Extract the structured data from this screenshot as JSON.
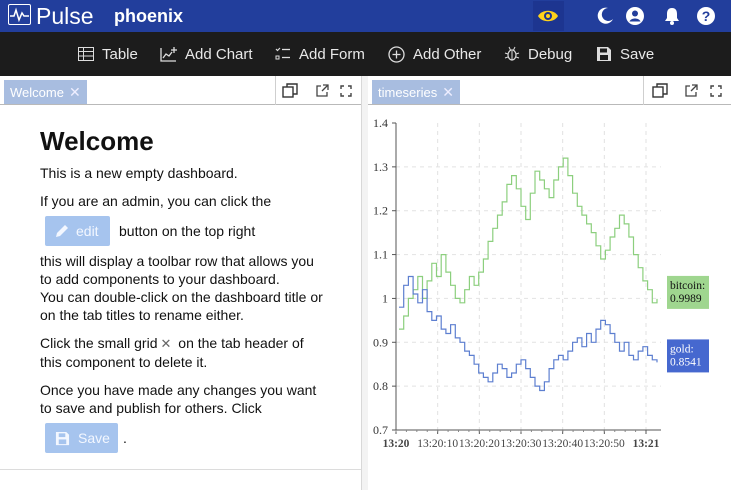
{
  "header": {
    "brand": "Pulse",
    "project": "phoenix",
    "icons": [
      "pulse-logo-icon",
      "eye-icon",
      "moon-icon",
      "user-icon",
      "bell-icon",
      "help-icon"
    ],
    "colors": {
      "bar": "#223e9c",
      "eye": "#ffd21a"
    }
  },
  "toolbar": {
    "items": [
      {
        "label": "Table",
        "icon": "table-icon"
      },
      {
        "label": "Add Chart",
        "icon": "add-chart-icon"
      },
      {
        "label": "Add Form",
        "icon": "add-form-icon"
      },
      {
        "label": "Add Other",
        "icon": "add-other-icon"
      },
      {
        "label": "Debug",
        "icon": "debug-icon"
      },
      {
        "label": "Save",
        "icon": "save-icon"
      }
    ]
  },
  "left_panel": {
    "tab": "Welcome",
    "heading": "Welcome",
    "p1": "This is a new empty dashboard.",
    "p2a": "If you are an admin, you can click the",
    "edit_label": "edit",
    "p2b": "button on the top right",
    "p2c": "this will display a toolbar row that allows you to add components to your dashboard.",
    "p2d": "You can double-click on the dashboard title or on the tab titles to rename either.",
    "p3a": "Click the small",
    "grid_word": "grid",
    "p3b": "on the tab header of this component to delete it.",
    "p4": "Once you have made any changes you want to save and publish for others. Click",
    "save_label": "Save",
    "period": "."
  },
  "right_panel": {
    "tab": "timeseries"
  },
  "chart_data": {
    "type": "line",
    "xlabel": "",
    "ylabel": "",
    "ylim": [
      0.7,
      1.4
    ],
    "yticks": [
      "1.4",
      "1.3",
      "1.2",
      "1.1",
      "1",
      "0.9",
      "0.8",
      "0.7"
    ],
    "xticks": [
      {
        "label": "13:20",
        "bold": true
      },
      {
        "label": "13:20:10",
        "bold": false
      },
      {
        "label": "13:20:20",
        "bold": false
      },
      {
        "label": "13:20:30",
        "bold": false
      },
      {
        "label": "13:20:40",
        "bold": false
      },
      {
        "label": "13:20:50",
        "bold": false
      },
      {
        "label": "13:21",
        "bold": true
      }
    ],
    "grid": true,
    "step": true,
    "series": [
      {
        "name": "bitcoin",
        "last_value": "0.9989",
        "color": "#8ccf7e",
        "label_bg": "#9fd68f",
        "values": [
          0.93,
          0.96,
          1.0,
          1.02,
          1.05,
          1.0,
          1.04,
          1.08,
          1.05,
          1.1,
          1.06,
          1.03,
          1.0,
          0.99,
          1.02,
          1.05,
          1.03,
          1.06,
          1.09,
          1.13,
          1.16,
          1.19,
          1.22,
          1.26,
          1.28,
          1.25,
          1.21,
          1.18,
          1.24,
          1.29,
          1.27,
          1.25,
          1.23,
          1.27,
          1.3,
          1.32,
          1.28,
          1.24,
          1.21,
          1.19,
          1.17,
          1.15,
          1.12,
          1.09,
          1.11,
          1.14,
          1.16,
          1.19,
          1.17,
          1.14,
          1.1,
          1.07,
          1.04,
          1.02,
          0.99,
          0.9989
        ]
      },
      {
        "name": "gold",
        "last_value": "0.8541",
        "color": "#5d7fd0",
        "label_bg": "#4668cf",
        "values": [
          0.98,
          1.03,
          1.05,
          1.01,
          0.99,
          1.02,
          0.97,
          0.95,
          0.96,
          0.93,
          0.92,
          0.94,
          0.91,
          0.9,
          0.88,
          0.87,
          0.85,
          0.83,
          0.82,
          0.81,
          0.83,
          0.85,
          0.84,
          0.82,
          0.83,
          0.85,
          0.86,
          0.84,
          0.82,
          0.8,
          0.79,
          0.81,
          0.84,
          0.86,
          0.87,
          0.86,
          0.88,
          0.9,
          0.91,
          0.89,
          0.92,
          0.9,
          0.93,
          0.95,
          0.94,
          0.92,
          0.9,
          0.88,
          0.9,
          0.87,
          0.86,
          0.88,
          0.89,
          0.87,
          0.86,
          0.8541
        ]
      }
    ]
  }
}
